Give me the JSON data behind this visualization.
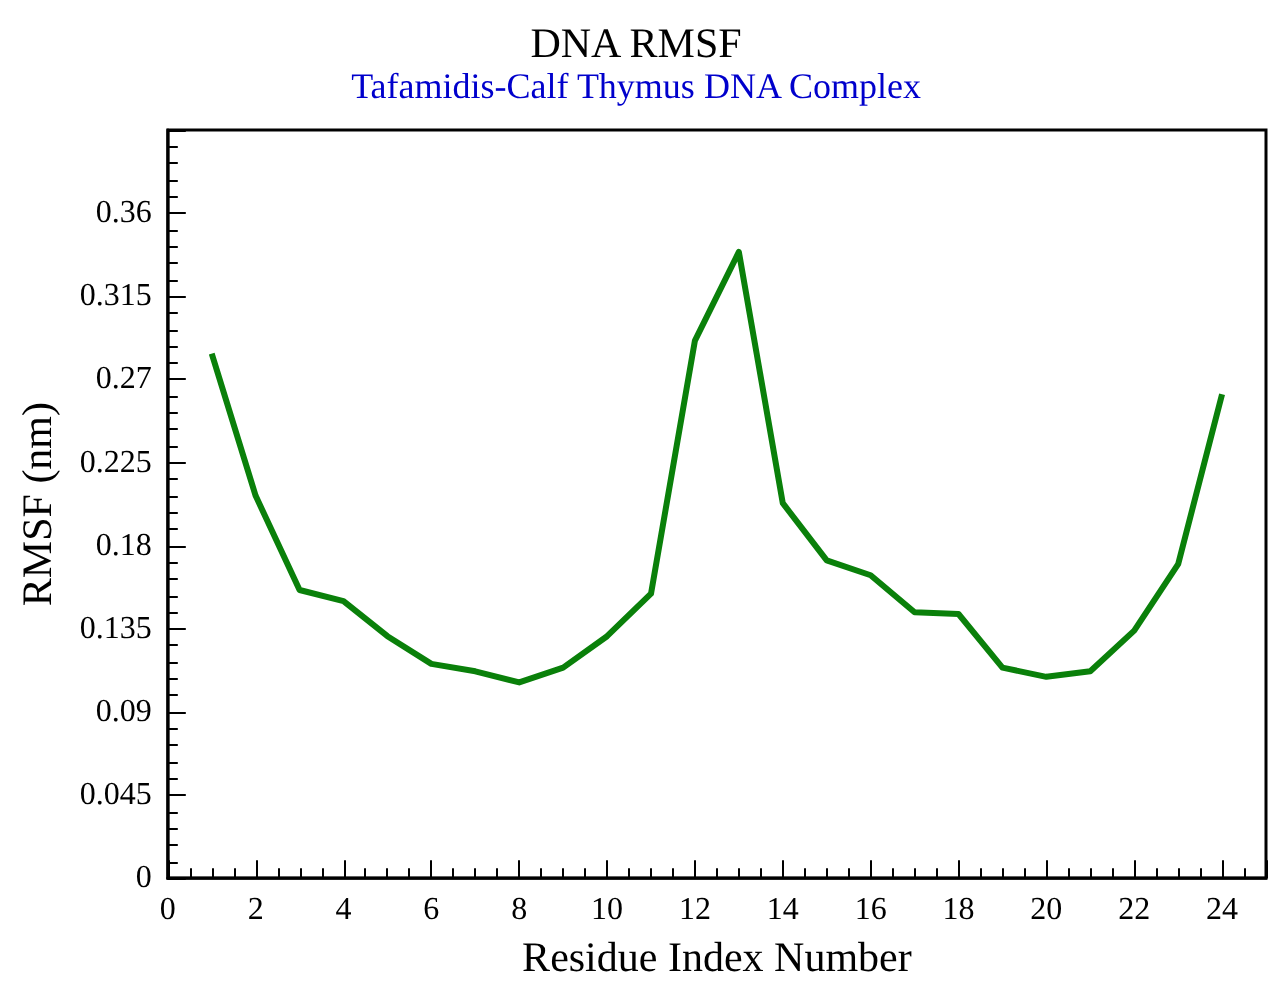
{
  "chart_data": {
    "type": "line",
    "title": "DNA RMSF",
    "subtitle": "Tafamidis-Calf Thymus DNA Complex",
    "xlabel": "Residue Index Number",
    "ylabel": "RMSF (nm)",
    "x": [
      1,
      2,
      3,
      4,
      5,
      6,
      7,
      8,
      9,
      10,
      11,
      12,
      13,
      14,
      15,
      16,
      17,
      18,
      19,
      20,
      21,
      22,
      23,
      24
    ],
    "series": [
      {
        "color": "#0a800a",
        "values": [
          0.284,
          0.207,
          0.156,
          0.15,
          0.131,
          0.116,
          0.112,
          0.106,
          0.114,
          0.131,
          0.154,
          0.291,
          0.339,
          0.203,
          0.172,
          0.164,
          0.144,
          0.143,
          0.114,
          0.109,
          0.112,
          0.134,
          0.17,
          0.262
        ]
      }
    ],
    "xlim": [
      0,
      25
    ],
    "xticks": [
      0,
      2,
      4,
      6,
      8,
      10,
      12,
      14,
      16,
      18,
      20,
      22,
      24
    ],
    "ylim": [
      0,
      0.405
    ],
    "yticks": [
      0,
      0.045,
      0.09,
      0.135,
      0.18,
      0.225,
      0.27,
      0.315,
      0.36
    ],
    "grid": false,
    "marker": "none",
    "line_style": "solid"
  }
}
